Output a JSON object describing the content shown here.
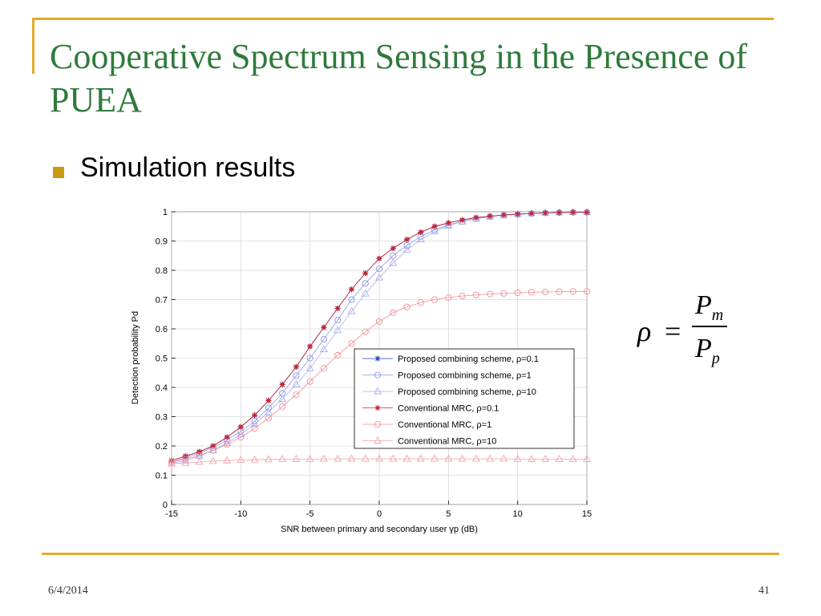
{
  "slide": {
    "title": "Cooperative Spectrum Sensing in the Presence of PUEA",
    "bullet": "Simulation results",
    "date": "6/4/2014",
    "page": "41",
    "accent_color": "#e2ac2a",
    "title_color": "#2f7a3b"
  },
  "formula": {
    "lhs": "ρ",
    "eq": "=",
    "num_main": "P",
    "num_sub": "m",
    "den_main": "P",
    "den_sub": "p"
  },
  "chart_data": {
    "type": "line",
    "xlabel": "SNR between primary and secondary user  γp (dB)",
    "ylabel": "Detection probability  Pd",
    "xlim": [
      -15,
      15
    ],
    "ylim": [
      0,
      1
    ],
    "xticks": [
      -15,
      -10,
      -5,
      0,
      5,
      10,
      15
    ],
    "yticks": [
      0,
      0.1,
      0.2,
      0.3,
      0.4,
      0.5,
      0.6,
      0.7,
      0.8,
      0.9,
      1
    ],
    "grid": true,
    "legend_position": "lower-right",
    "x": [
      -15,
      -14,
      -13,
      -12,
      -11,
      -10,
      -9,
      -8,
      -7,
      -6,
      -5,
      -4,
      -3,
      -2,
      -1,
      0,
      1,
      2,
      3,
      4,
      5,
      6,
      7,
      8,
      9,
      10,
      11,
      12,
      13,
      14,
      15
    ],
    "series": [
      {
        "name": "Proposed combining scheme, ρ=0.1",
        "marker": "star",
        "color": "#1f3fcf",
        "values": [
          0.15,
          0.165,
          0.18,
          0.2,
          0.23,
          0.265,
          0.305,
          0.355,
          0.41,
          0.47,
          0.54,
          0.605,
          0.67,
          0.735,
          0.79,
          0.84,
          0.875,
          0.905,
          0.93,
          0.95,
          0.962,
          0.972,
          0.98,
          0.985,
          0.989,
          0.992,
          0.994,
          0.996,
          0.997,
          0.998,
          0.998
        ]
      },
      {
        "name": "Proposed combining scheme, ρ=1",
        "marker": "circle",
        "color": "#8c96e6",
        "values": [
          0.145,
          0.16,
          0.175,
          0.195,
          0.22,
          0.25,
          0.285,
          0.33,
          0.38,
          0.44,
          0.5,
          0.565,
          0.63,
          0.7,
          0.755,
          0.805,
          0.85,
          0.885,
          0.915,
          0.938,
          0.955,
          0.967,
          0.976,
          0.983,
          0.988,
          0.991,
          0.994,
          0.996,
          0.997,
          0.998,
          0.998
        ]
      },
      {
        "name": "Proposed combining scheme, ρ=10",
        "marker": "triangle",
        "color": "#a8b0ee",
        "values": [
          0.14,
          0.15,
          0.165,
          0.185,
          0.21,
          0.24,
          0.275,
          0.315,
          0.36,
          0.41,
          0.465,
          0.53,
          0.595,
          0.66,
          0.72,
          0.775,
          0.825,
          0.87,
          0.905,
          0.932,
          0.952,
          0.966,
          0.976,
          0.983,
          0.988,
          0.992,
          0.994,
          0.996,
          0.997,
          0.998,
          0.998
        ]
      },
      {
        "name": "Conventional MRC, ρ=0.1",
        "marker": "star",
        "color": "#c8222a",
        "values": [
          0.15,
          0.165,
          0.18,
          0.2,
          0.23,
          0.265,
          0.305,
          0.355,
          0.41,
          0.47,
          0.54,
          0.605,
          0.67,
          0.735,
          0.79,
          0.84,
          0.875,
          0.905,
          0.93,
          0.95,
          0.962,
          0.972,
          0.98,
          0.985,
          0.989,
          0.992,
          0.994,
          0.996,
          0.997,
          0.998,
          0.998
        ]
      },
      {
        "name": "Conventional MRC, ρ=1",
        "marker": "circle",
        "color": "#ef8f96",
        "values": [
          0.145,
          0.155,
          0.168,
          0.185,
          0.205,
          0.23,
          0.26,
          0.295,
          0.335,
          0.375,
          0.42,
          0.465,
          0.51,
          0.55,
          0.59,
          0.625,
          0.655,
          0.675,
          0.69,
          0.7,
          0.707,
          0.712,
          0.716,
          0.719,
          0.721,
          0.723,
          0.725,
          0.726,
          0.727,
          0.728,
          0.728
        ]
      },
      {
        "name": "Conventional MRC, ρ=10",
        "marker": "triangle",
        "color": "#f2a0a6",
        "values": [
          0.14,
          0.142,
          0.145,
          0.148,
          0.15,
          0.152,
          0.153,
          0.154,
          0.155,
          0.155,
          0.155,
          0.156,
          0.156,
          0.156,
          0.156,
          0.156,
          0.156,
          0.156,
          0.156,
          0.156,
          0.156,
          0.156,
          0.156,
          0.156,
          0.156,
          0.155,
          0.155,
          0.155,
          0.155,
          0.155,
          0.155
        ]
      }
    ]
  }
}
